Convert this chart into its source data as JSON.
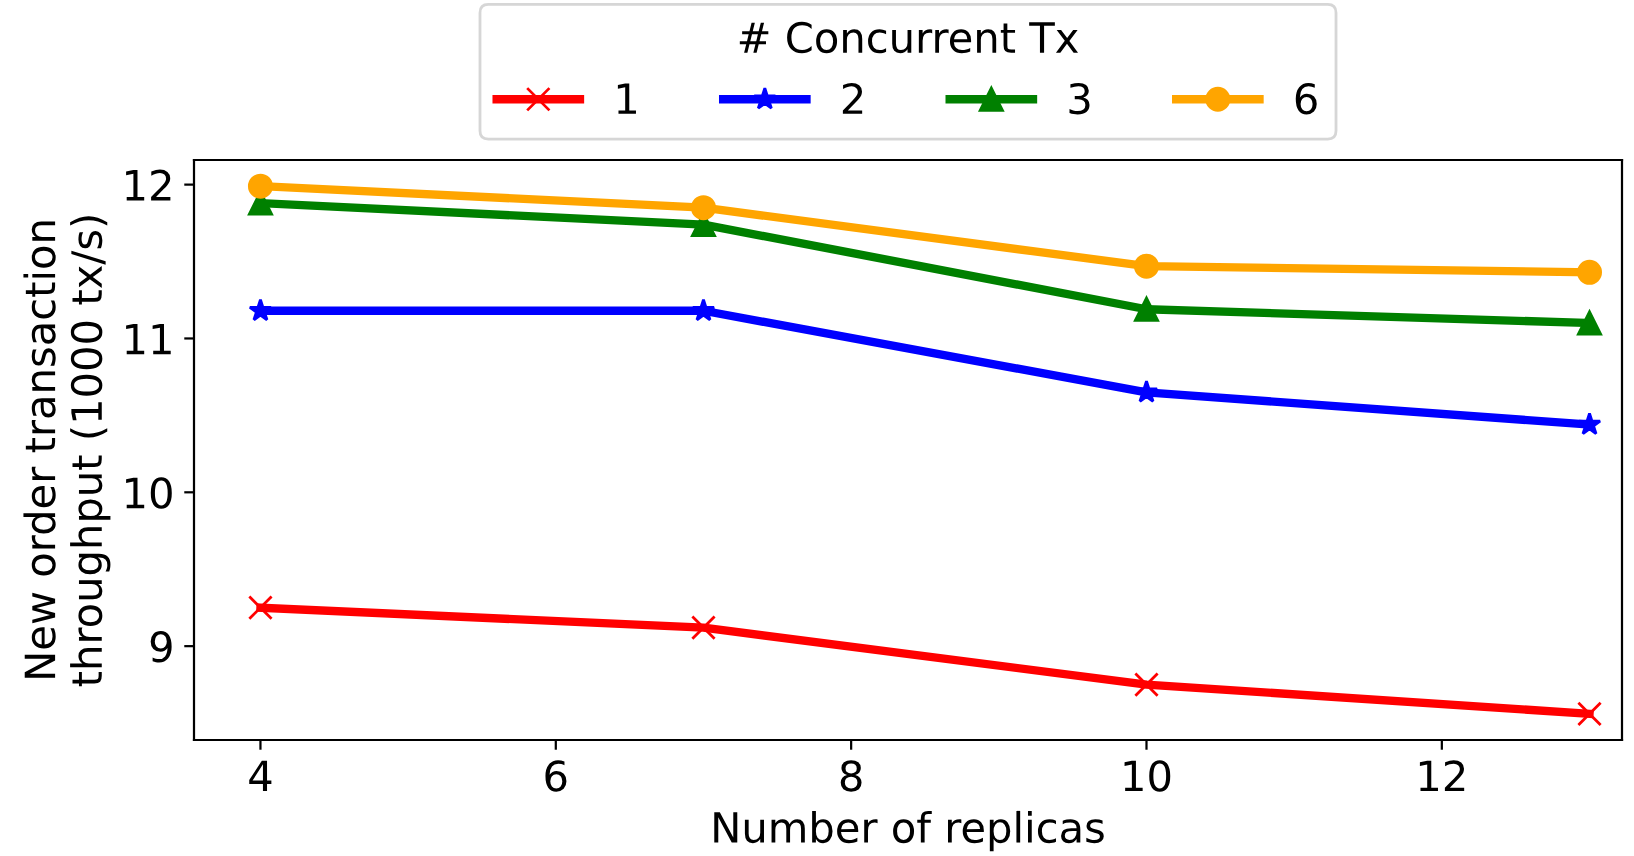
{
  "chart_data": {
    "type": "line",
    "xlabel": "Number of replicas",
    "ylabel": "New order transaction\nthroughput (1000 tx/s)",
    "legend_title": "# Concurrent Tx",
    "legend": "top",
    "grid": false,
    "x": [
      4,
      7,
      10,
      13
    ],
    "xlim": [
      3.55,
      13.22
    ],
    "xticks": [
      4,
      6,
      8,
      10,
      12
    ],
    "ylim": [
      8.39,
      12.16
    ],
    "yticks": [
      9,
      10,
      11,
      12
    ],
    "series": [
      {
        "name": "1",
        "color": "#ff0000",
        "marker": "cross",
        "values": [
          9.25,
          9.12,
          8.75,
          8.56
        ]
      },
      {
        "name": "2",
        "color": "#0000ff",
        "marker": "star",
        "values": [
          11.18,
          11.18,
          10.65,
          10.44
        ]
      },
      {
        "name": "3",
        "color": "#008000",
        "marker": "triangle",
        "values": [
          11.88,
          11.74,
          11.19,
          11.1
        ]
      },
      {
        "name": "6",
        "color": "#ffa500",
        "marker": "circle",
        "values": [
          11.99,
          11.85,
          11.47,
          11.43
        ]
      }
    ]
  }
}
